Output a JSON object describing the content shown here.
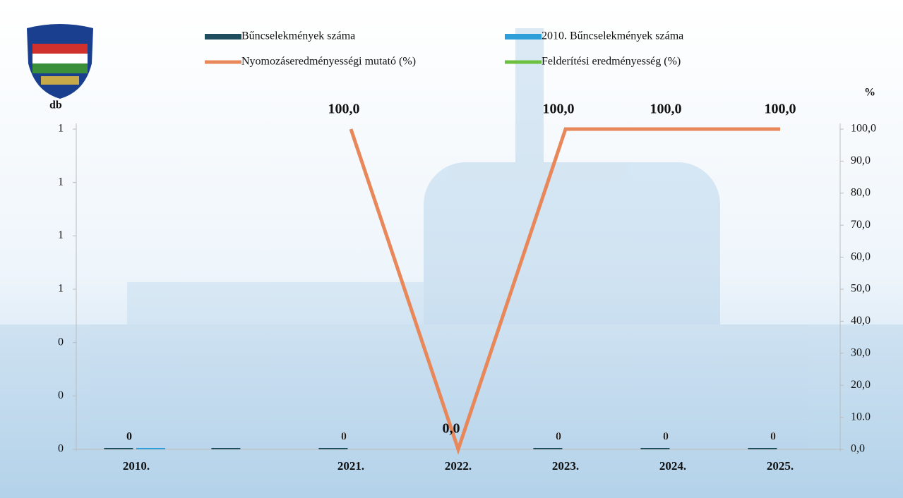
{
  "chart_data": {
    "type": "bar-line",
    "y_label": "db",
    "y2_label": "%",
    "categories": [
      "2010.",
      null,
      "2021.",
      "2022.",
      "2023.",
      "2024.",
      "2025."
    ],
    "series": [
      {
        "name": "Bűncselekmények száma",
        "type": "bar",
        "color": "#1f4e5f",
        "values": [
          0,
          0,
          0,
          null,
          0,
          0,
          0
        ],
        "value_labels": [
          "0",
          null,
          "0",
          null,
          "0",
          "0",
          "0"
        ]
      },
      {
        "name": "2010. Bűncselekmények száma",
        "type": "bar",
        "color": "#2e9fd8",
        "values": [
          0,
          null,
          null,
          null,
          null,
          null,
          null
        ]
      },
      {
        "name": "Nyomozáseredményességi mutató (%)",
        "type": "line",
        "axis": "y2",
        "color": "#e8875a",
        "values": [
          null,
          null,
          100,
          0,
          100,
          100,
          100
        ],
        "value_labels": [
          null,
          null,
          "100,0",
          "0,0",
          "100,0",
          "100,0",
          "100,0"
        ]
      },
      {
        "name": "Felderítési eredményesség (%)",
        "type": "line",
        "axis": "y2",
        "color": "#6cbf3f",
        "values": [
          null,
          null,
          null,
          null,
          null,
          null,
          null
        ]
      }
    ],
    "ylim": [
      0,
      1.2
    ],
    "yticks": [
      {
        "value": 0,
        "label": "0"
      },
      {
        "value": 0.2,
        "label": "0"
      },
      {
        "value": 0.4,
        "label": "0"
      },
      {
        "value": 0.6,
        "label": "1"
      },
      {
        "value": 0.8,
        "label": "1"
      },
      {
        "value": 1.0,
        "label": "1"
      },
      {
        "value": 1.2,
        "label": "1"
      }
    ],
    "y2lim": [
      0,
      100
    ],
    "y2ticks": [
      {
        "value": 0,
        "label": "0,0"
      },
      {
        "value": 10,
        "label": "10.0"
      },
      {
        "value": 20,
        "label": "20,0"
      },
      {
        "value": 30,
        "label": "30,0"
      },
      {
        "value": 40,
        "label": "40,0"
      },
      {
        "value": 50,
        "label": "50,0"
      },
      {
        "value": 60,
        "label": "60,0"
      },
      {
        "value": 70,
        "label": "70,0"
      },
      {
        "value": 80,
        "label": "80,0"
      },
      {
        "value": 90,
        "label": "90,0"
      },
      {
        "value": 100,
        "label": "100,0"
      }
    ],
    "grid": false
  }
}
